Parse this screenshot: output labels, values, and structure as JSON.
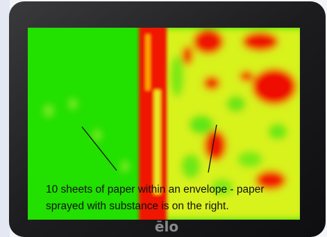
{
  "caption": {
    "lines": [
      "10 sheets of paper within an envelope - paper",
      "sprayed with substance is on the right."
    ]
  },
  "logo": "ēlo"
}
